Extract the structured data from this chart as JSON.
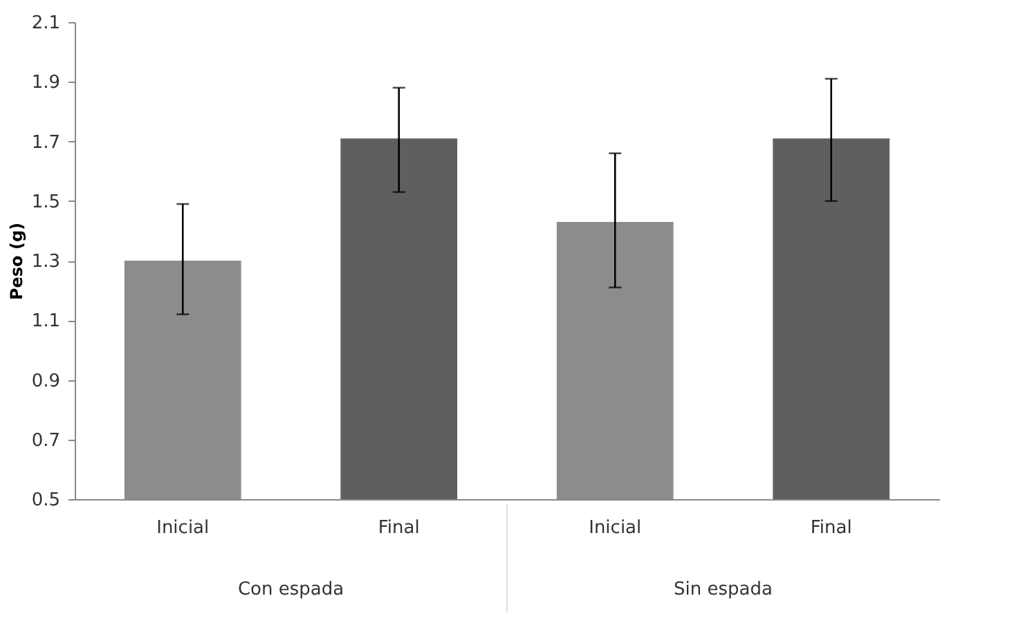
{
  "chart_data": {
    "type": "bar",
    "ylabel": "Peso (g)",
    "categories": [
      "Inicial",
      "Final",
      "Inicial",
      "Final"
    ],
    "values": [
      1.3,
      1.71,
      1.43,
      1.71
    ],
    "colors": [
      "#8c8c8c",
      "#5f5f5f",
      "#8c8c8c",
      "#5f5f5f"
    ],
    "errors": [
      [
        1.12,
        1.49
      ],
      [
        1.53,
        1.88
      ],
      [
        1.21,
        1.66
      ],
      [
        1.5,
        1.91
      ]
    ],
    "ylim": [
      0.5,
      2.1
    ],
    "yticks": [
      0.5,
      0.7,
      0.9,
      1.1,
      1.3,
      1.5,
      1.7,
      1.9,
      2.1
    ],
    "annotations": [
      "Con espada",
      "Sin espada"
    ],
    "grid": false
  }
}
